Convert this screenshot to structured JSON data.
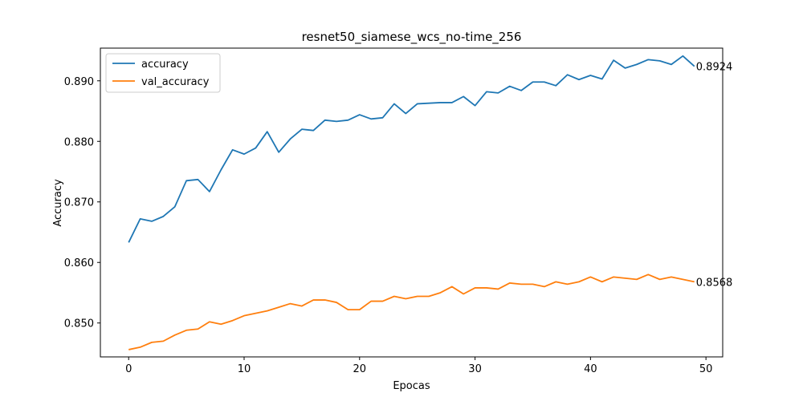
{
  "chart_data": {
    "type": "line",
    "title": "resnet50_siamese_wcs_no-time_256",
    "xlabel": "Epocas",
    "ylabel": "Accuracy",
    "xlim": [
      -2.45,
      51.45
    ],
    "ylim": [
      0.8444,
      0.8954
    ],
    "xticks": [
      0,
      10,
      20,
      30,
      40,
      50
    ],
    "xtick_labels": [
      "0",
      "10",
      "20",
      "30",
      "40",
      "50"
    ],
    "yticks": [
      0.85,
      0.86,
      0.87,
      0.88,
      0.89
    ],
    "ytick_labels": [
      "0.850",
      "0.860",
      "0.870",
      "0.880",
      "0.890"
    ],
    "grid": false,
    "legend_position": "top-left",
    "series": [
      {
        "name": "accuracy",
        "color": "#1f77b4",
        "end_label": "0.8924",
        "x": [
          0,
          1,
          2,
          3,
          4,
          5,
          6,
          7,
          8,
          9,
          10,
          11,
          12,
          13,
          14,
          15,
          16,
          17,
          18,
          19,
          20,
          21,
          22,
          23,
          24,
          25,
          26,
          27,
          28,
          29,
          30,
          31,
          32,
          33,
          34,
          35,
          36,
          37,
          38,
          39,
          40,
          41,
          42,
          43,
          44,
          45,
          46,
          47,
          48,
          49
        ],
        "values": [
          0.8633,
          0.8672,
          0.8668,
          0.8676,
          0.8692,
          0.8735,
          0.8737,
          0.8717,
          0.8753,
          0.8786,
          0.8779,
          0.8789,
          0.8816,
          0.8782,
          0.8804,
          0.882,
          0.8818,
          0.8835,
          0.8833,
          0.8835,
          0.8844,
          0.8837,
          0.8839,
          0.8862,
          0.8846,
          0.8862,
          0.8863,
          0.8864,
          0.8864,
          0.8874,
          0.8859,
          0.8882,
          0.888,
          0.8891,
          0.8884,
          0.8898,
          0.8898,
          0.8892,
          0.891,
          0.8902,
          0.8909,
          0.8903,
          0.8934,
          0.8921,
          0.8927,
          0.8935,
          0.8933,
          0.8927,
          0.8941,
          0.8924
        ]
      },
      {
        "name": "val_accuracy",
        "color": "#ff7f0e",
        "end_label": "0.8568",
        "x": [
          0,
          1,
          2,
          3,
          4,
          5,
          6,
          7,
          8,
          9,
          10,
          11,
          12,
          13,
          14,
          15,
          16,
          17,
          18,
          19,
          20,
          21,
          22,
          23,
          24,
          25,
          26,
          27,
          28,
          29,
          30,
          31,
          32,
          33,
          34,
          35,
          36,
          37,
          38,
          39,
          40,
          41,
          42,
          43,
          44,
          45,
          46,
          47,
          48,
          49
        ],
        "values": [
          0.8456,
          0.846,
          0.8468,
          0.847,
          0.848,
          0.8488,
          0.849,
          0.8502,
          0.8498,
          0.8504,
          0.8512,
          0.8516,
          0.852,
          0.8526,
          0.8532,
          0.8528,
          0.8538,
          0.8538,
          0.8534,
          0.8522,
          0.8522,
          0.8536,
          0.8536,
          0.8544,
          0.854,
          0.8544,
          0.8544,
          0.855,
          0.856,
          0.8548,
          0.8558,
          0.8558,
          0.8556,
          0.8566,
          0.8564,
          0.8564,
          0.856,
          0.8568,
          0.8564,
          0.8568,
          0.8576,
          0.8568,
          0.8576,
          0.8574,
          0.8572,
          0.858,
          0.8572,
          0.8576,
          0.8572,
          0.8568
        ]
      }
    ]
  }
}
